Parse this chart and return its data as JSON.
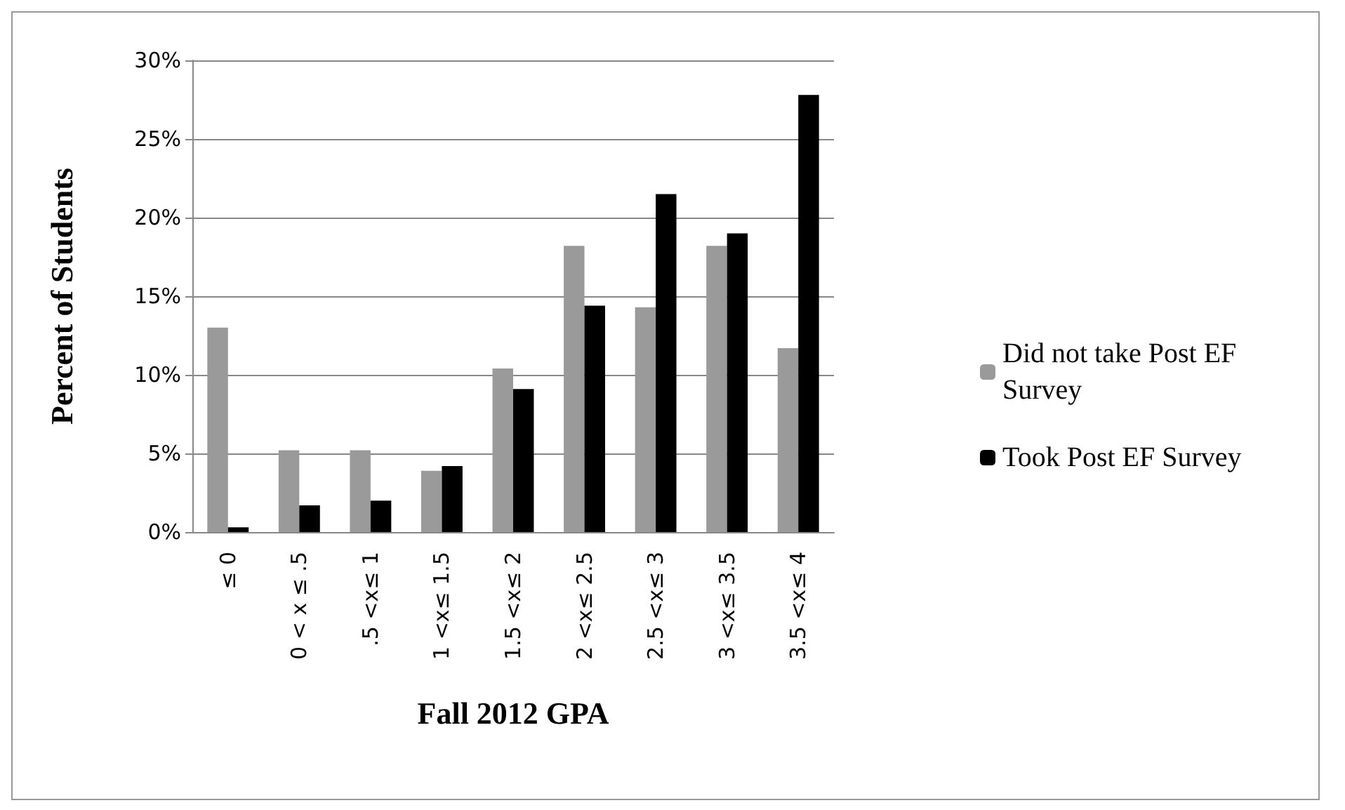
{
  "chart_data": {
    "type": "bar",
    "xlabel": "Fall 2012 GPA",
    "ylabel": "Percent of Students",
    "categories": [
      "≤ 0",
      "0 < x ≤ .5",
      ".5 <x≤ 1",
      "1 <x≤ 1.5",
      "1.5 <x≤ 2",
      "2 <x≤ 2.5",
      "2.5 <x≤ 3",
      "3 <x≤ 3.5",
      "3.5 <x≤ 4"
    ],
    "series": [
      {
        "name": "Did not take Post EF Survey",
        "color": "#9a9a9a",
        "values": [
          13.0,
          5.2,
          5.2,
          3.9,
          10.4,
          18.2,
          14.3,
          18.2,
          11.7
        ]
      },
      {
        "name": "Took Post EF Survey",
        "color": "#000000",
        "values": [
          0.3,
          1.7,
          2.0,
          4.2,
          9.1,
          14.4,
          21.5,
          19.0,
          27.8
        ]
      }
    ],
    "ylim": [
      0,
      30
    ],
    "yticks": [
      {
        "value": 0,
        "label": "0%"
      },
      {
        "value": 5,
        "label": "5%"
      },
      {
        "value": 10,
        "label": "10%"
      },
      {
        "value": 15,
        "label": "15%"
      },
      {
        "value": 20,
        "label": "20%"
      },
      {
        "value": 25,
        "label": "25%"
      },
      {
        "value": 30,
        "label": "30%"
      }
    ],
    "grid": "y",
    "legend": "right"
  }
}
